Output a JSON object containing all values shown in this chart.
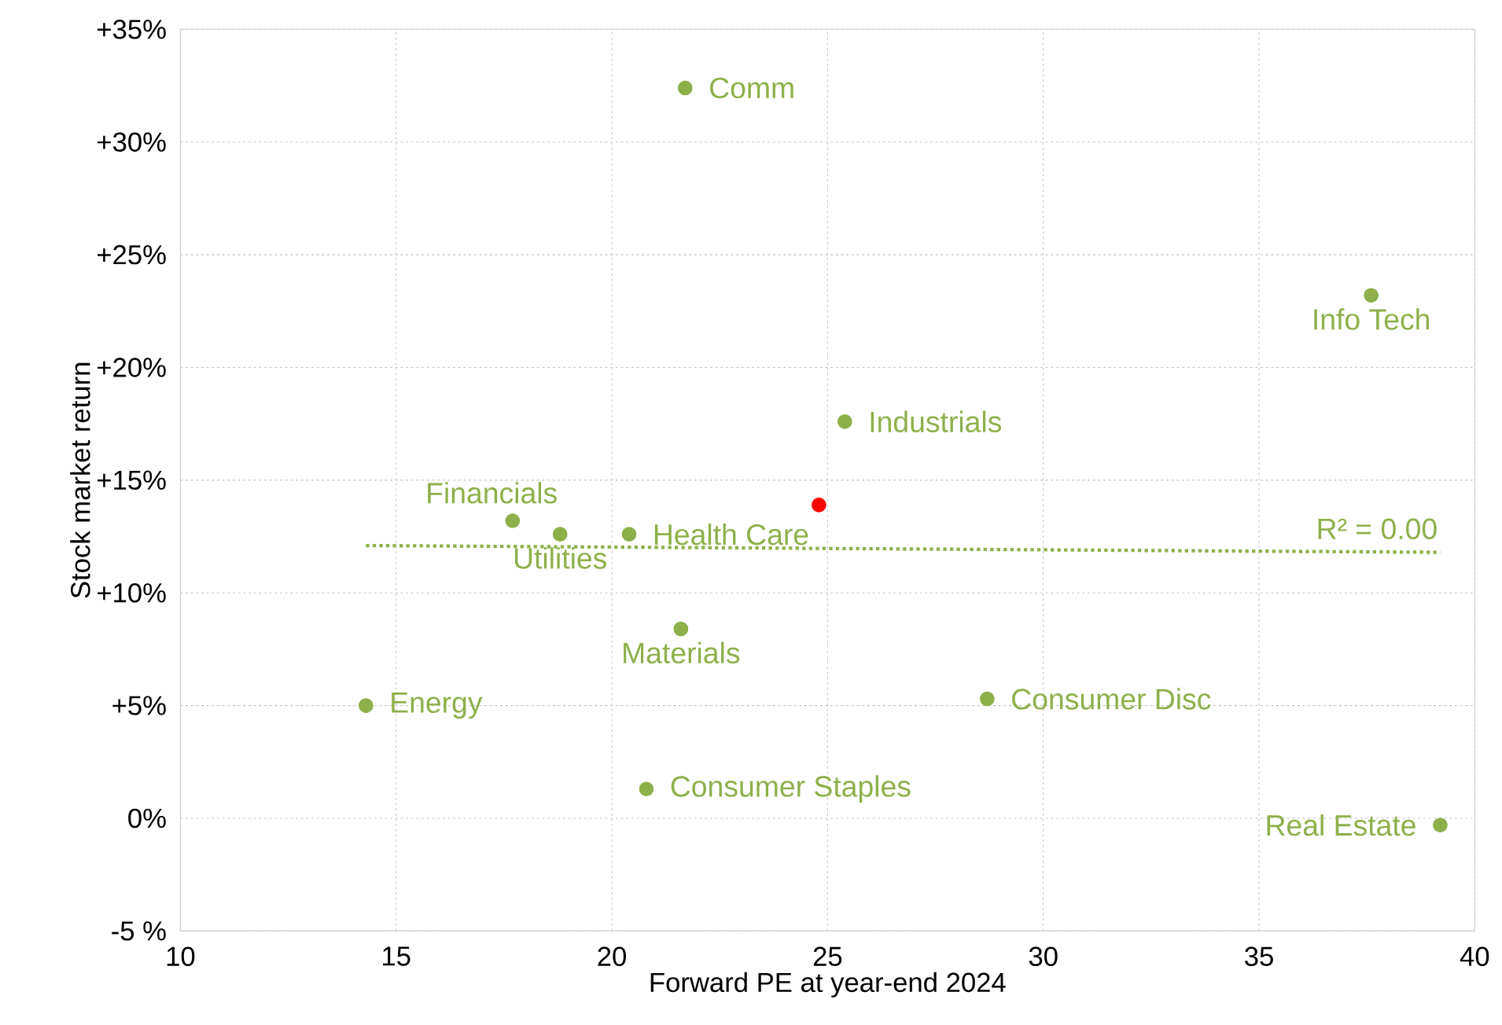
{
  "chart_data": {
    "type": "scatter",
    "xlabel": "Forward  PE at year-end 2024",
    "ylabel": "Stock market return",
    "xlim": [
      10,
      40
    ],
    "xticks": [
      10,
      15,
      20,
      25,
      30,
      35,
      40
    ],
    "ylim": [
      -5,
      35
    ],
    "yticks": [
      {
        "value": -5,
        "label": "-5 %"
      },
      {
        "value": 0,
        "label": "0%"
      },
      {
        "value": 5,
        "label": "+5%"
      },
      {
        "value": 10,
        "label": "+10%"
      },
      {
        "value": 15,
        "label": "+15%"
      },
      {
        "value": 20,
        "label": "+20%"
      },
      {
        "value": 25,
        "label": "+25%"
      },
      {
        "value": 30,
        "label": "+30%"
      },
      {
        "value": 35,
        "label": "+35%"
      }
    ],
    "grid": true,
    "series": [
      {
        "color": "#8db04a",
        "marker": "circle",
        "x": [
          21.7,
          37.6,
          25.4,
          17.7,
          18.8,
          20.4,
          21.6,
          14.3,
          28.7,
          20.8,
          39.2
        ],
        "values": [
          32.4,
          23.2,
          17.6,
          13.2,
          12.6,
          12.6,
          8.4,
          5.0,
          5.3,
          1.3,
          -0.3
        ]
      },
      {
        "color": "#ff0000",
        "marker": "circle",
        "x": [
          24.8
        ],
        "values": [
          13.9
        ]
      },
      {
        "type": "line",
        "color": "#8db04a",
        "line_style": "dotted",
        "marker": "none",
        "x": [
          14.3,
          39.2
        ],
        "values": [
          12.1,
          11.8
        ]
      }
    ],
    "annotations": [
      {
        "text": "Comm",
        "x": 21.7,
        "y": 32.4
      },
      {
        "text": "Info Tech",
        "x": 37.6,
        "y": 23.2
      },
      {
        "text": "Industrials",
        "x": 25.4,
        "y": 17.6
      },
      {
        "text": "Financials",
        "x": 17.7,
        "y": 13.2
      },
      {
        "text": "Utilities",
        "x": 18.8,
        "y": 12.6
      },
      {
        "text": "Health Care",
        "x": 20.4,
        "y": 12.6
      },
      {
        "text": "Materials",
        "x": 21.6,
        "y": 8.4
      },
      {
        "text": "Energy",
        "x": 14.3,
        "y": 5.0
      },
      {
        "text": "Consumer Disc",
        "x": 28.7,
        "y": 5.3
      },
      {
        "text": "Consumer Staples",
        "x": 20.8,
        "y": 1.3
      },
      {
        "text": "Real Estate",
        "x": 39.2,
        "y": -0.3
      },
      "R² = 0.00"
    ]
  }
}
